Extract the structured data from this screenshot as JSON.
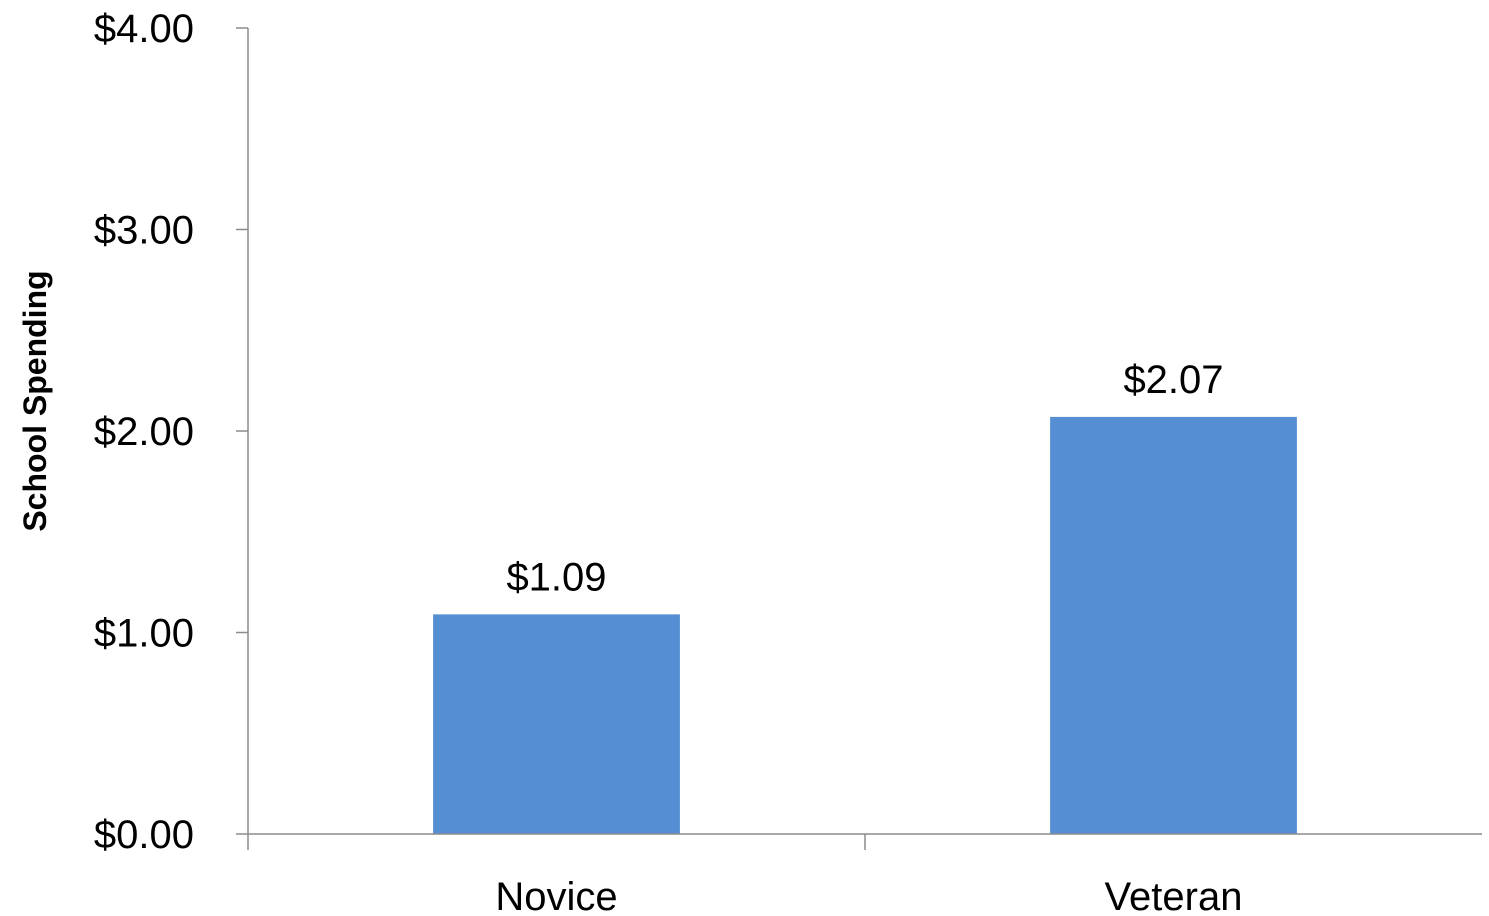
{
  "chart_data": {
    "type": "bar",
    "title": "",
    "xlabel": "",
    "ylabel": "School Spending",
    "categories": [
      "Novice",
      "Veteran"
    ],
    "values": [
      1.09,
      2.07
    ],
    "data_labels": [
      "$1.09",
      "$2.07"
    ],
    "ylim": [
      0,
      4
    ],
    "y_ticks": [
      0,
      1,
      2,
      3,
      4
    ],
    "y_tick_labels": [
      "$0.00",
      "$1.00",
      "$2.00",
      "$3.00",
      "$4.00"
    ],
    "bar_color": "#568ed4",
    "grid": false,
    "legend": "none"
  }
}
